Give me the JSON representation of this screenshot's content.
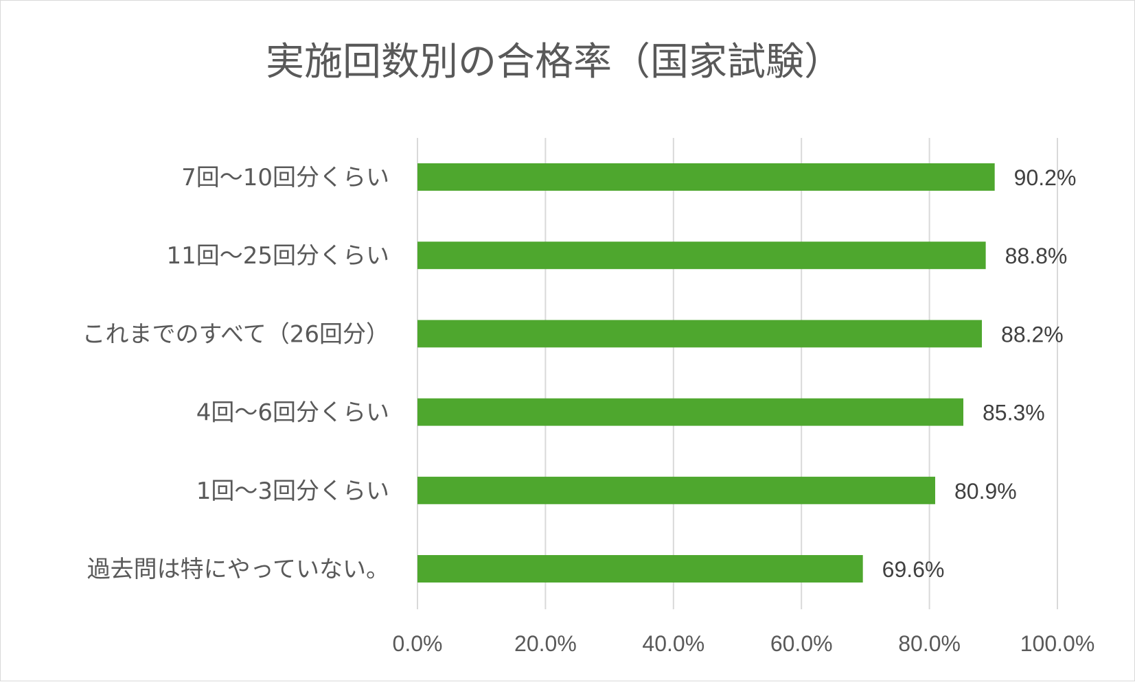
{
  "chart_data": {
    "type": "bar",
    "orientation": "horizontal",
    "title": "実施回数別の合格率（国家試験）",
    "categories": [
      "7回～10回分くらい",
      "11回～25回分くらい",
      "これまでのすべて（26回分）",
      "4回～6回分くらい",
      "1回～3回分くらい",
      "過去問は特にやっていない。"
    ],
    "values": [
      90.2,
      88.8,
      88.2,
      85.3,
      80.9,
      69.6
    ],
    "value_labels": [
      "90.2%",
      "88.8%",
      "88.2%",
      "85.3%",
      "80.9%",
      "69.6%"
    ],
    "xlim": [
      0,
      100
    ],
    "x_ticks": [
      0,
      20,
      40,
      60,
      80,
      100
    ],
    "x_tick_labels": [
      "0.0%",
      "20.0%",
      "40.0%",
      "60.0%",
      "80.0%",
      "100.0%"
    ],
    "grid": true,
    "bar_color": "#4ea72e",
    "legend": "none"
  }
}
